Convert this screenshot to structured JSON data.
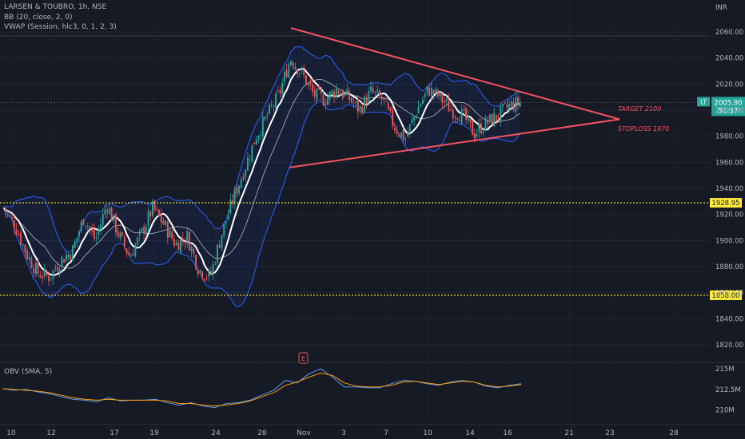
{
  "header": {
    "symbol_line": "LARSEN & TOUBRO, 1h, NSE",
    "bb_label": "BB (20, close, 2, 0)",
    "vwap_label": "VWAP (Session, hlc3, 0, 1, 2, 3)",
    "obv_label": "OBV (SMA, 5)",
    "currency": "INR"
  },
  "price_badge": {
    "ticker": "LT",
    "price": "2005.90",
    "countdown": "51:37"
  },
  "levels": [
    {
      "value": 1928.95,
      "label": "1928.95"
    },
    {
      "value": 1858.0,
      "label": "1858.00"
    }
  ],
  "annotations": {
    "target": "TARGET 2100",
    "stoploss": "STOPLOSS 1970",
    "event_marker": "E"
  },
  "colors": {
    "up": "#26a69a",
    "down": "#ef5350",
    "bb": "#2962ff",
    "level": "#ffeb3b",
    "triangle": "#f7525f",
    "obv": "#5b9cf6",
    "obv_sma": "#ff9800"
  },
  "chart_data": [
    {
      "type": "candlestick",
      "title": "LARSEN & TOUBRO, 1h, NSE",
      "y_axis_ticks": [
        1820,
        1840,
        1860,
        1880,
        1900,
        1920,
        1940,
        1960,
        1980,
        2000,
        2020,
        2040,
        2060
      ],
      "ylim": [
        1808,
        2072
      ],
      "x_tick_labels": [
        "10",
        "12",
        "17",
        "19",
        "24",
        "28",
        "Nov",
        "3",
        "7",
        "10",
        "14",
        "16",
        "21",
        "23",
        "28"
      ],
      "grid": true,
      "close_path": [
        [
          0,
          1925
        ],
        [
          1,
          1912
        ],
        [
          2,
          1890
        ],
        [
          3,
          1875
        ],
        [
          4,
          1872
        ],
        [
          5,
          1885
        ],
        [
          6,
          1892
        ],
        [
          7,
          1918
        ],
        [
          8,
          1900
        ],
        [
          9,
          1928
        ],
        [
          10,
          1905
        ],
        [
          11,
          1888
        ],
        [
          12,
          1905
        ],
        [
          13,
          1925
        ],
        [
          14,
          1912
        ],
        [
          15,
          1897
        ],
        [
          16,
          1903
        ],
        [
          17,
          1878
        ],
        [
          18,
          1872
        ],
        [
          19,
          1905
        ],
        [
          20,
          1932
        ],
        [
          21,
          1955
        ],
        [
          22,
          1980
        ],
        [
          23,
          1996
        ],
        [
          24,
          2012
        ],
        [
          25,
          2040
        ],
        [
          26,
          2028
        ],
        [
          27,
          2012
        ],
        [
          28,
          2008
        ],
        [
          29,
          2016
        ],
        [
          30,
          2010
        ],
        [
          31,
          2000
        ],
        [
          32,
          2014
        ],
        [
          33,
          2008
        ],
        [
          34,
          1988
        ],
        [
          35,
          1978
        ],
        [
          36,
          2000
        ],
        [
          37,
          2016
        ],
        [
          38,
          2010
        ],
        [
          39,
          2000
        ],
        [
          40,
          1996
        ],
        [
          41,
          1982
        ],
        [
          42,
          1990
        ],
        [
          43,
          1995
        ],
        [
          44,
          2003
        ],
        [
          45,
          2005.9
        ]
      ],
      "close_path_note": "approximate closing-price trajectory over the visible hourly bars",
      "current_price": 2005.9,
      "pattern": {
        "type": "symmetrical triangle",
        "upper_line": [
          [
            1999,
            2063
          ],
          [
            2165,
            1993
          ]
        ],
        "lower_line": [
          [
            1999,
            1956
          ],
          [
            2165,
            1993
          ]
        ],
        "x_note": "x expressed in bar-index units scaled so apex is at far right"
      }
    },
    {
      "type": "line",
      "title": "OBV (SMA, 5)",
      "y_axis_ticks": [
        "210M",
        "212.5M",
        "215M"
      ],
      "ylim": [
        209.2,
        215.4
      ],
      "series": [
        {
          "name": "OBV",
          "values": [
            212.6,
            212.4,
            212.5,
            212.2,
            212.0,
            211.6,
            211.3,
            211.2,
            211.0,
            211.5,
            211.1,
            211.2,
            211.2,
            211.3,
            210.9,
            210.6,
            210.9,
            210.5,
            210.3,
            210.8,
            210.9,
            211.2,
            211.8,
            212.4,
            213.6,
            213.3,
            214.4,
            215.0,
            214.0,
            212.8,
            212.8,
            212.7,
            212.7,
            213.2,
            213.6,
            213.5,
            213.2,
            213.0,
            213.4,
            213.6,
            213.4,
            212.9,
            212.7,
            213.0,
            213.2
          ]
        },
        {
          "name": "SMA",
          "values": [
            212.6,
            212.5,
            212.4,
            212.3,
            212.1,
            211.8,
            211.5,
            211.3,
            211.2,
            211.3,
            211.2,
            211.2,
            211.2,
            211.2,
            211.1,
            210.8,
            210.8,
            210.6,
            210.5,
            210.6,
            210.8,
            211.1,
            211.6,
            212.1,
            213.0,
            213.4,
            214.0,
            214.5,
            214.2,
            213.3,
            212.9,
            212.8,
            212.8,
            213.0,
            213.4,
            213.5,
            213.3,
            213.1,
            213.3,
            213.5,
            213.4,
            213.0,
            212.8,
            212.9,
            213.1
          ]
        }
      ]
    }
  ]
}
